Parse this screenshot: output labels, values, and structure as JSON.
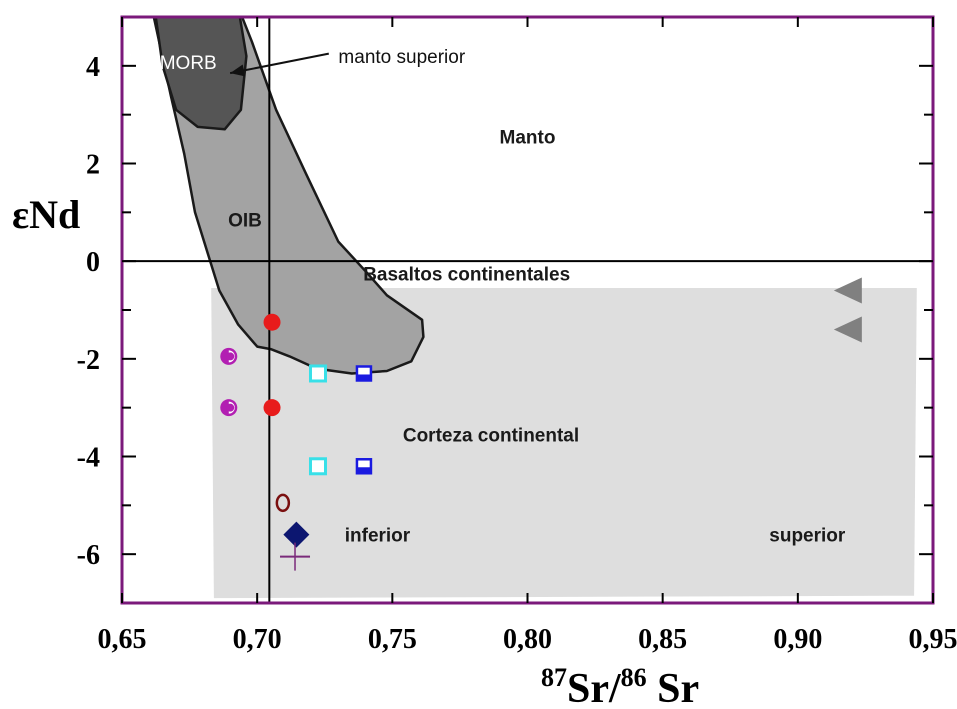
{
  "chart_data": {
    "type": "scatter",
    "xlabel": "87Sr/86Sr",
    "xlabel_parts": {
      "sup1": "87",
      "base1": "Sr/",
      "sup2": "86",
      "base2": " Sr"
    },
    "ylabel": "εNd",
    "xlim": [
      0.65,
      0.95
    ],
    "ylim": [
      -7,
      5
    ],
    "x_ticks": [
      {
        "value": 0.65,
        "label": "0,65"
      },
      {
        "value": 0.7,
        "label": "0,70"
      },
      {
        "value": 0.75,
        "label": "0,75"
      },
      {
        "value": 0.8,
        "label": "0,80"
      },
      {
        "value": 0.85,
        "label": "0,85"
      },
      {
        "value": 0.9,
        "label": "0,90"
      },
      {
        "value": 0.95,
        "label": "0,95"
      }
    ],
    "y_ticks": [
      {
        "value": 4,
        "label": "4"
      },
      {
        "value": 2,
        "label": "2"
      },
      {
        "value": 0,
        "label": "0"
      },
      {
        "value": -2,
        "label": "-2"
      },
      {
        "value": -4,
        "label": "-4"
      },
      {
        "value": -6,
        "label": "-6"
      }
    ],
    "y_minor_ticks": [
      3,
      1,
      -1,
      -3,
      -5
    ],
    "reference_lines": [
      {
        "orientation": "horizontal",
        "value": 0
      },
      {
        "orientation": "vertical",
        "value": 0.7045
      }
    ],
    "regions": [
      {
        "name": "crust-box",
        "label": "",
        "color": "#dedede",
        "stroke": "none",
        "points": [
          [
            0.683,
            -0.55
          ],
          [
            0.944,
            -0.55
          ],
          [
            0.943,
            -6.85
          ],
          [
            0.684,
            -6.9
          ]
        ]
      },
      {
        "name": "oib-field",
        "label": "OIB",
        "color": "#a3a3a3",
        "stroke": "#1a1a1a",
        "points": [
          [
            0.661,
            5.2
          ],
          [
            0.668,
            3.4
          ],
          [
            0.673,
            2.2
          ],
          [
            0.677,
            1.0
          ],
          [
            0.686,
            -0.6
          ],
          [
            0.693,
            -1.3
          ],
          [
            0.7,
            -1.75
          ],
          [
            0.705,
            -1.8
          ],
          [
            0.712,
            -1.95
          ],
          [
            0.722,
            -2.2
          ],
          [
            0.735,
            -2.3
          ],
          [
            0.748,
            -2.25
          ],
          [
            0.757,
            -2.05
          ],
          [
            0.7615,
            -1.55
          ],
          [
            0.761,
            -1.2
          ],
          [
            0.748,
            -0.7
          ],
          [
            0.74,
            -0.2
          ],
          [
            0.73,
            0.4
          ],
          [
            0.718,
            1.8
          ],
          [
            0.707,
            3.1
          ],
          [
            0.698,
            4.5
          ],
          [
            0.693,
            5.2
          ]
        ]
      },
      {
        "name": "morb-field",
        "label": "MORB",
        "color": "#555555",
        "stroke": "#1a1a1a",
        "points": [
          [
            0.662,
            5.2
          ],
          [
            0.693,
            5.2
          ],
          [
            0.696,
            4.2
          ],
          [
            0.694,
            3.1
          ],
          [
            0.688,
            2.7
          ],
          [
            0.678,
            2.75
          ],
          [
            0.67,
            3.1
          ],
          [
            0.665,
            4.0
          ]
        ]
      }
    ],
    "labels": [
      {
        "name": "morb-label",
        "text": "MORB",
        "x": 0.6745,
        "y": 4.08,
        "color": "#ffffff",
        "weight": "normal"
      },
      {
        "name": "manto-superior-label",
        "text": "manto superior",
        "x": 0.7535,
        "y": 4.2,
        "color": "#111111",
        "weight": "normal"
      },
      {
        "name": "manto-label",
        "text": "Manto",
        "x": 0.8,
        "y": 2.55,
        "color": "#1a1a1a",
        "weight": "bold"
      },
      {
        "name": "oib-label",
        "text": "OIB",
        "x": 0.6955,
        "y": 0.85,
        "color": "#1a1a1a",
        "weight": "bold"
      },
      {
        "name": "basaltos-label",
        "text": "Basaltos continentales",
        "x": 0.7775,
        "y": -0.25,
        "color": "#1a1a1a",
        "weight": "bold"
      },
      {
        "name": "corteza-label",
        "text": "Corteza continental",
        "x": 0.7865,
        "y": -3.55,
        "color": "#1a1a1a",
        "weight": "bold"
      },
      {
        "name": "inferior-label",
        "text": "inferior",
        "x": 0.7445,
        "y": -5.6,
        "color": "#1a1a1a",
        "weight": "bold"
      },
      {
        "name": "superior-label",
        "text": "superior",
        "x": 0.9035,
        "y": -5.6,
        "color": "#1a1a1a",
        "weight": "bold"
      }
    ],
    "annotations": [
      {
        "type": "arrow",
        "from": [
          0.7265,
          4.25
        ],
        "to": [
          0.69,
          3.85
        ]
      }
    ],
    "series": [
      {
        "marker": "half-filled-circle",
        "color": "#b21fb2",
        "points": [
          [
            0.6895,
            -1.95
          ],
          [
            0.6895,
            -3.0
          ]
        ]
      },
      {
        "marker": "filled-circle",
        "color": "#e81c1c",
        "points": [
          [
            0.7055,
            -1.25
          ],
          [
            0.7055,
            -3.0
          ]
        ]
      },
      {
        "marker": "open-square",
        "color": "#38e0e8",
        "points": [
          [
            0.7225,
            -2.3
          ],
          [
            0.7225,
            -4.2
          ]
        ]
      },
      {
        "marker": "half-filled-square",
        "color": "#1a1ae0",
        "points": [
          [
            0.7395,
            -2.3
          ],
          [
            0.7395,
            -4.2
          ]
        ]
      },
      {
        "marker": "open-circle",
        "color": "#7a1010",
        "points": [
          [
            0.7095,
            -4.95
          ]
        ]
      },
      {
        "marker": "filled-diamond",
        "color": "#0c1670",
        "points": [
          [
            0.7145,
            -5.6
          ]
        ]
      },
      {
        "marker": "cross",
        "color": "#7a2a7a",
        "points": [
          [
            0.714,
            -6.05
          ]
        ]
      },
      {
        "marker": "left-triangle",
        "color": "#808080",
        "points": [
          [
            0.9185,
            -0.6
          ],
          [
            0.9185,
            -1.4
          ]
        ]
      }
    ],
    "frame_color": "#7b1a7b",
    "grid": false
  }
}
